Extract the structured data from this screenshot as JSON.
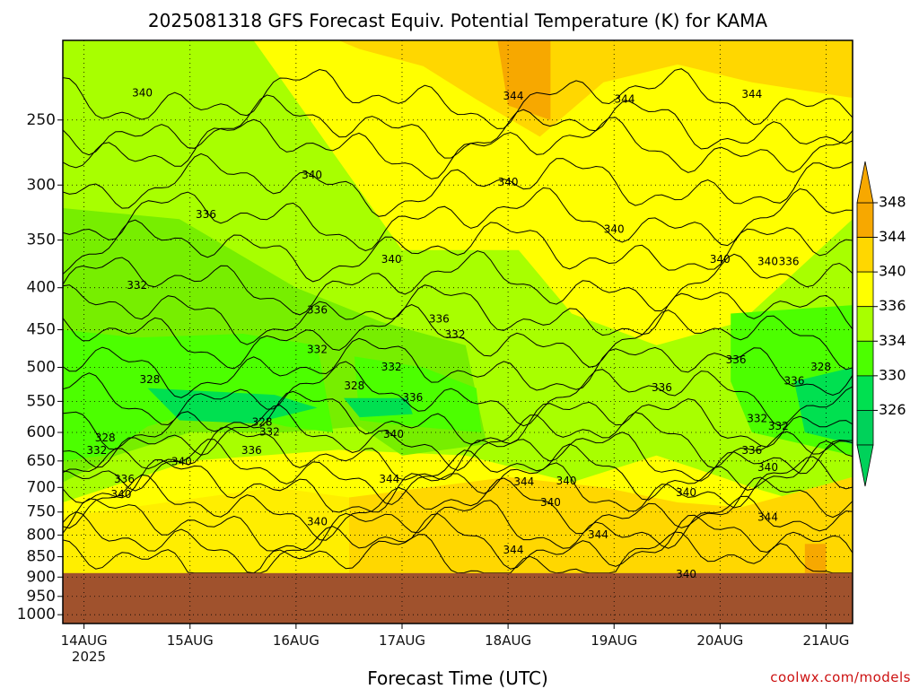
{
  "chart_data": {
    "type": "heatmap",
    "title": "2025081318 GFS Forecast Equiv. Potential Temperature (K) for KAMA",
    "xlabel": "Forecast Time (UTC)",
    "ylabel": "",
    "credit": "coolwx.com/models",
    "x_ticks": [
      "14AUG",
      "15AUG",
      "16AUG",
      "17AUG",
      "18AUG",
      "19AUG",
      "20AUG",
      "21AUG"
    ],
    "x_year": "2025",
    "x_range_days": [
      -0.2,
      7.25
    ],
    "y_ticks": [
      250,
      300,
      350,
      400,
      450,
      500,
      550,
      600,
      650,
      700,
      750,
      800,
      850,
      900,
      950,
      1000
    ],
    "y_range_hpa": [
      200,
      1025
    ],
    "ground_level_hpa": 890,
    "y_scale": "log",
    "grid": true,
    "colorbar": {
      "ticks": [
        348,
        344,
        340,
        336,
        334,
        330,
        326
      ],
      "colors": [
        "#f7a800",
        "#ffd700",
        "#ffff00",
        "#a8ff00",
        "#4cff00",
        "#00e050",
        "#00d25a"
      ]
    },
    "contour_labels": [
      {
        "value": "340",
        "day": 0.55,
        "p": 232
      },
      {
        "value": "344",
        "day": 4.05,
        "p": 234
      },
      {
        "value": "344",
        "day": 5.1,
        "p": 236
      },
      {
        "value": "344",
        "day": 6.3,
        "p": 233
      },
      {
        "value": "340",
        "day": 2.15,
        "p": 292
      },
      {
        "value": "340",
        "day": 4.0,
        "p": 298
      },
      {
        "value": "336",
        "day": 1.15,
        "p": 326
      },
      {
        "value": "340",
        "day": 5.0,
        "p": 340
      },
      {
        "value": "340",
        "day": 2.9,
        "p": 370
      },
      {
        "value": "340",
        "day": 6.0,
        "p": 370
      },
      {
        "value": "340",
        "day": 6.45,
        "p": 372
      },
      {
        "value": "336",
        "day": 6.65,
        "p": 372
      },
      {
        "value": "332",
        "day": 0.5,
        "p": 398
      },
      {
        "value": "336",
        "day": 2.2,
        "p": 426
      },
      {
        "value": "336",
        "day": 3.35,
        "p": 437
      },
      {
        "value": "332",
        "day": 3.5,
        "p": 457
      },
      {
        "value": "332",
        "day": 2.2,
        "p": 476
      },
      {
        "value": "336",
        "day": 6.15,
        "p": 490
      },
      {
        "value": "328",
        "day": 6.95,
        "p": 500
      },
      {
        "value": "332",
        "day": 2.9,
        "p": 500
      },
      {
        "value": "328",
        "day": 0.62,
        "p": 518
      },
      {
        "value": "336",
        "day": 6.7,
        "p": 520
      },
      {
        "value": "328",
        "day": 2.55,
        "p": 527
      },
      {
        "value": "336",
        "day": 5.45,
        "p": 530
      },
      {
        "value": "336",
        "day": 3.1,
        "p": 545
      },
      {
        "value": "328",
        "day": 1.68,
        "p": 584
      },
      {
        "value": "332",
        "day": 6.35,
        "p": 578
      },
      {
        "value": "332",
        "day": 6.55,
        "p": 590
      },
      {
        "value": "332",
        "day": 1.75,
        "p": 600
      },
      {
        "value": "340",
        "day": 2.92,
        "p": 604
      },
      {
        "value": "328",
        "day": 0.2,
        "p": 610
      },
      {
        "value": "336",
        "day": 6.3,
        "p": 632
      },
      {
        "value": "332",
        "day": 0.12,
        "p": 632
      },
      {
        "value": "336",
        "day": 1.58,
        "p": 632
      },
      {
        "value": "340",
        "day": 0.92,
        "p": 652
      },
      {
        "value": "340",
        "day": 6.45,
        "p": 663
      },
      {
        "value": "336",
        "day": 0.38,
        "p": 685
      },
      {
        "value": "344",
        "day": 2.88,
        "p": 685
      },
      {
        "value": "344",
        "day": 4.15,
        "p": 690
      },
      {
        "value": "340",
        "day": 4.55,
        "p": 688
      },
      {
        "value": "340",
        "day": 0.35,
        "p": 715
      },
      {
        "value": "340",
        "day": 5.68,
        "p": 711
      },
      {
        "value": "340",
        "day": 4.4,
        "p": 731
      },
      {
        "value": "344",
        "day": 6.45,
        "p": 762
      },
      {
        "value": "340",
        "day": 2.2,
        "p": 772
      },
      {
        "value": "344",
        "day": 4.85,
        "p": 800
      },
      {
        "value": "344",
        "day": 4.05,
        "p": 835
      },
      {
        "value": "340",
        "day": 5.68,
        "p": 894
      }
    ]
  }
}
